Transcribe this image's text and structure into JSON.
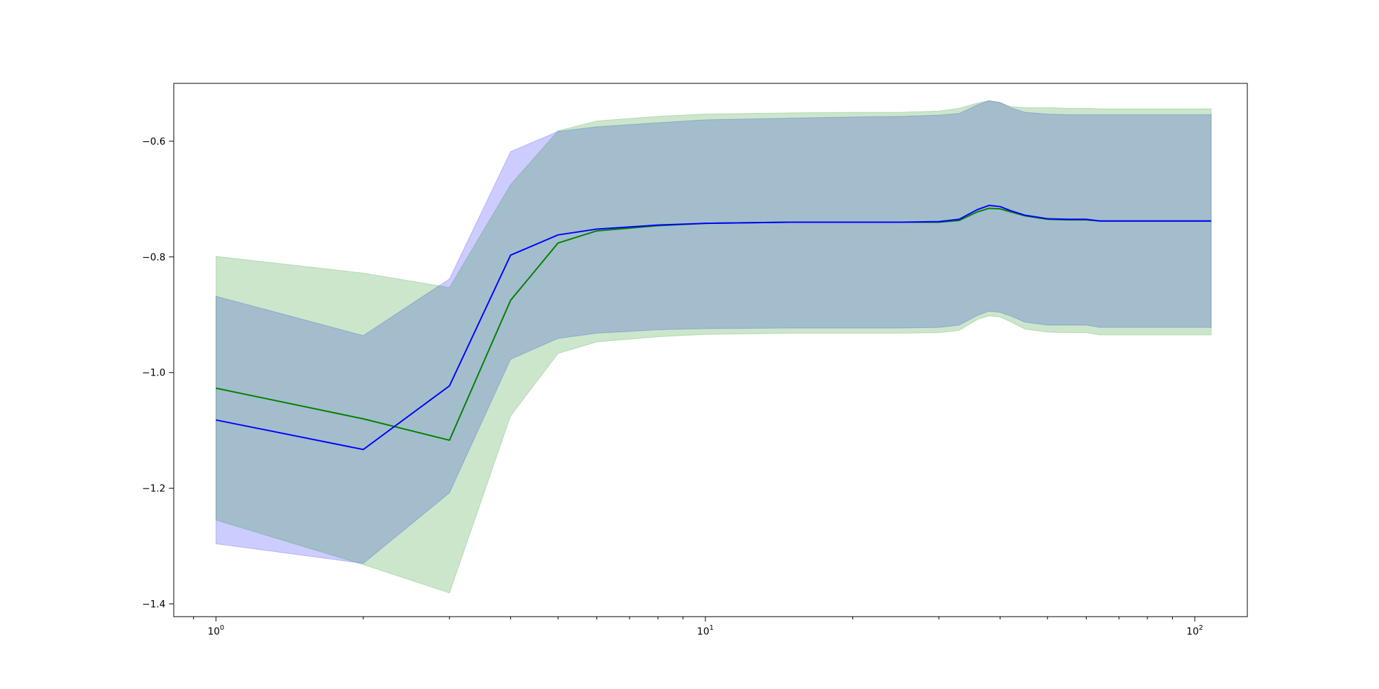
{
  "chart_data": {
    "type": "line",
    "title": "",
    "xlabel": "",
    "ylabel": "",
    "xscale": "log",
    "xlim": [
      0.82,
      128
    ],
    "ylim": [
      -1.422,
      -0.5
    ],
    "grid": false,
    "x_ticks": [
      {
        "value": 1,
        "base": "10",
        "exp": "0"
      },
      {
        "value": 10,
        "base": "10",
        "exp": "1"
      },
      {
        "value": 100,
        "base": "10",
        "exp": "2"
      }
    ],
    "y_ticks": [
      {
        "value": -0.6,
        "label": "−0.6"
      },
      {
        "value": -0.8,
        "label": "−0.8"
      },
      {
        "value": -1.0,
        "label": "−1.0"
      },
      {
        "value": -1.2,
        "label": "−1.2"
      },
      {
        "value": -1.4,
        "label": "−1.4"
      }
    ],
    "x": [
      1,
      2,
      3,
      4,
      5,
      6,
      8,
      10,
      15,
      20,
      25,
      30,
      33,
      36,
      38,
      40,
      42,
      45,
      50,
      55,
      60,
      64,
      70,
      80,
      90,
      108
    ],
    "series": [
      {
        "color": "#0000ff",
        "band_color": "#0000ff",
        "band_opacity": 0.2,
        "mean": [
          -1.082,
          -1.133,
          -1.023,
          -0.797,
          -0.762,
          -0.752,
          -0.745,
          -0.742,
          -0.74,
          -0.74,
          -0.74,
          -0.739,
          -0.735,
          -0.718,
          -0.711,
          -0.713,
          -0.72,
          -0.728,
          -0.734,
          -0.735,
          -0.735,
          -0.738,
          -0.738,
          -0.738,
          -0.738,
          -0.738
        ],
        "upper": [
          -0.868,
          -0.936,
          -0.838,
          -0.618,
          -0.583,
          -0.575,
          -0.568,
          -0.563,
          -0.56,
          -0.558,
          -0.557,
          -0.555,
          -0.552,
          -0.537,
          -0.53,
          -0.533,
          -0.542,
          -0.55,
          -0.553,
          -0.554,
          -0.554,
          -0.554,
          -0.554,
          -0.554,
          -0.554,
          -0.554
        ],
        "lower": [
          -1.296,
          -1.33,
          -1.208,
          -0.977,
          -0.941,
          -0.932,
          -0.926,
          -0.924,
          -0.923,
          -0.923,
          -0.923,
          -0.922,
          -0.918,
          -0.901,
          -0.894,
          -0.896,
          -0.902,
          -0.913,
          -0.918,
          -0.918,
          -0.918,
          -0.922,
          -0.922,
          -0.922,
          -0.922,
          -0.922
        ]
      },
      {
        "color": "#008000",
        "band_color": "#008000",
        "band_opacity": 0.2,
        "mean": [
          -1.027,
          -1.08,
          -1.117,
          -0.875,
          -0.776,
          -0.755,
          -0.746,
          -0.742,
          -0.74,
          -0.74,
          -0.74,
          -0.74,
          -0.737,
          -0.722,
          -0.716,
          -0.717,
          -0.722,
          -0.729,
          -0.735,
          -0.736,
          -0.736,
          -0.738,
          -0.738,
          -0.738,
          -0.738,
          -0.738
        ],
        "upper": [
          -0.799,
          -0.828,
          -0.853,
          -0.675,
          -0.582,
          -0.565,
          -0.557,
          -0.553,
          -0.551,
          -0.55,
          -0.55,
          -0.548,
          -0.543,
          -0.534,
          -0.53,
          -0.533,
          -0.54,
          -0.542,
          -0.542,
          -0.543,
          -0.543,
          -0.544,
          -0.544,
          -0.544,
          -0.544,
          -0.544
        ],
        "lower": [
          -1.255,
          -1.332,
          -1.381,
          -1.075,
          -0.967,
          -0.947,
          -0.938,
          -0.934,
          -0.932,
          -0.932,
          -0.932,
          -0.931,
          -0.927,
          -0.908,
          -0.902,
          -0.904,
          -0.912,
          -0.925,
          -0.93,
          -0.931,
          -0.931,
          -0.935,
          -0.935,
          -0.935,
          -0.935,
          -0.935
        ]
      }
    ]
  }
}
